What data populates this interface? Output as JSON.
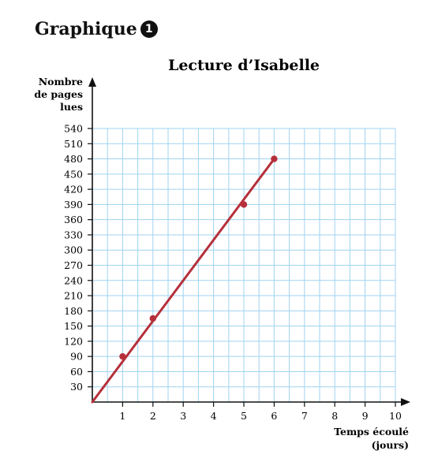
{
  "header": {
    "label": "Graphique",
    "badge": "1"
  },
  "colors": {
    "grid": "#9fd3f0",
    "axis": "#111111",
    "series": "#b5303b"
  },
  "chart_data": {
    "type": "line",
    "title": "Lecture d’Isabelle",
    "ylabel_lines": [
      "Nombre",
      "de pages",
      "lues"
    ],
    "xlabel_lines": [
      "Temps écoulé",
      "(jours)"
    ],
    "xlim": [
      0,
      10
    ],
    "ylim": [
      0,
      540
    ],
    "x_ticks": [
      1,
      2,
      3,
      4,
      5,
      6,
      7,
      8,
      9,
      10
    ],
    "y_ticks": [
      30,
      60,
      90,
      120,
      150,
      180,
      210,
      240,
      270,
      300,
      330,
      360,
      390,
      420,
      450,
      480,
      510,
      540
    ],
    "grid": {
      "x_step": 0.5,
      "y_step": 30,
      "shown": true
    },
    "series": [
      {
        "line": [
          [
            0,
            0
          ],
          [
            6,
            480
          ]
        ],
        "points": [
          [
            1,
            90
          ],
          [
            2,
            165
          ],
          [
            5,
            390
          ],
          [
            6,
            480
          ]
        ]
      }
    ]
  }
}
